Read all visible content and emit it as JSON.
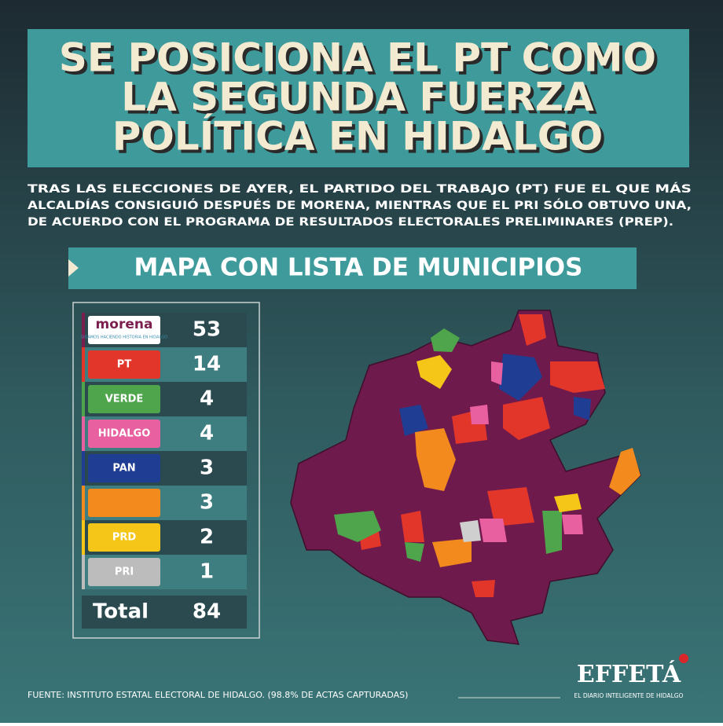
{
  "header": {
    "title": [
      "SE POSICIONA EL PT COMO",
      "LA SEGUNDA FUERZA",
      "POLÍTICA EN HIDALGO"
    ],
    "subtitle": [
      "TRAS LAS ELECCIONES DE AYER, EL PARTIDO DEL TRABAJO (PT) FUE EL QUE MÁS",
      "ALCALDÍAS CONSIGUIÓ DESPUÉS DE MORENA, MIENTRAS QUE EL PRI SÓLO OBTUVO UNA,",
      "DE ACUERDO CON EL PROGRAMA DE RESULTADOS ELECTORALES PRELIMINARES (PREP)."
    ]
  },
  "section_title": "MAPA CON LISTA DE MUNICIPIOS",
  "table": {
    "rows": [
      {
        "logo": "morena",
        "logo_sub": "SIGAMOS HACIENDO HISTORIA EN HIDALGO",
        "count": "53",
        "color": "#7a1f4e"
      },
      {
        "logo": "PT",
        "count": "14",
        "color": "#e2362a"
      },
      {
        "logo": "VERDE",
        "count": "4",
        "color": "#4ea54b"
      },
      {
        "logo": "HIDALGO",
        "count": "4",
        "color": "#e8609f"
      },
      {
        "logo": "PAN",
        "count": "3",
        "color": "#1f3d92"
      },
      {
        "logo": "",
        "count": "3",
        "color": "#f28a1e"
      },
      {
        "logo": "PRD",
        "count": "2",
        "color": "#f5c518"
      },
      {
        "logo": "PRI",
        "count": "1",
        "color": "#bcbcbc"
      }
    ],
    "total_label": "Total",
    "total": "84"
  },
  "footer": {
    "source": "FUENTE:  INSTITUTO ESTATAL ELECTORAL DE HIDALGO. (98.8% DE ACTAS CAPTURADAS)",
    "brand": "EFFETÁ",
    "tagline": "EL DIARIO INTELIGENTE DE HIDALGO"
  }
}
